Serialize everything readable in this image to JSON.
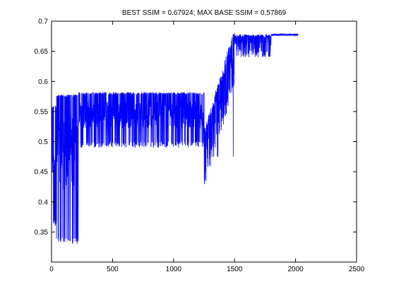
{
  "chart_data": {
    "type": "line",
    "title": "BEST SSIM = 0.67924; MAX BASE SSIM = 0.57869",
    "xlabel": "",
    "ylabel": "",
    "xlim": [
      0,
      2500
    ],
    "ylim": [
      0.3,
      0.7
    ],
    "x_ticks": [
      0,
      500,
      1000,
      1500,
      2000,
      2500
    ],
    "y_ticks": [
      0.35,
      0.4,
      0.45,
      0.5,
      0.55,
      0.6,
      0.65,
      0.7
    ],
    "x_tick_labels": [
      "0",
      "500",
      "1000",
      "1500",
      "2000",
      "2500"
    ],
    "y_tick_labels": [
      "0.35",
      "0.4",
      "0.45",
      "0.5",
      "0.55",
      "0.6",
      "0.65",
      "0.7"
    ],
    "grid": false,
    "legend": "none",
    "series": [
      {
        "color": "#0000ff",
        "n_points": 2020,
        "segments": [
          {
            "x_start": 1,
            "x_end": 40,
            "low": 0.36,
            "high": 0.56,
            "center": 0.45
          },
          {
            "x_start": 40,
            "x_end": 220,
            "low": 0.33,
            "high": 0.578,
            "center": 0.47
          },
          {
            "x_start": 220,
            "x_end": 1250,
            "low": 0.49,
            "high": 0.582,
            "center": 0.53
          },
          {
            "x_start": 1250,
            "x_end": 1500,
            "low": 0.47,
            "high": 0.67,
            "center": 0.6
          },
          {
            "x_start": 1500,
            "x_end": 1800,
            "low": 0.63,
            "high": 0.679,
            "center": 0.66
          },
          {
            "x_start": 1800,
            "x_end": 2020,
            "low": 0.675,
            "high": 0.6792,
            "center": 0.678
          }
        ]
      }
    ]
  }
}
